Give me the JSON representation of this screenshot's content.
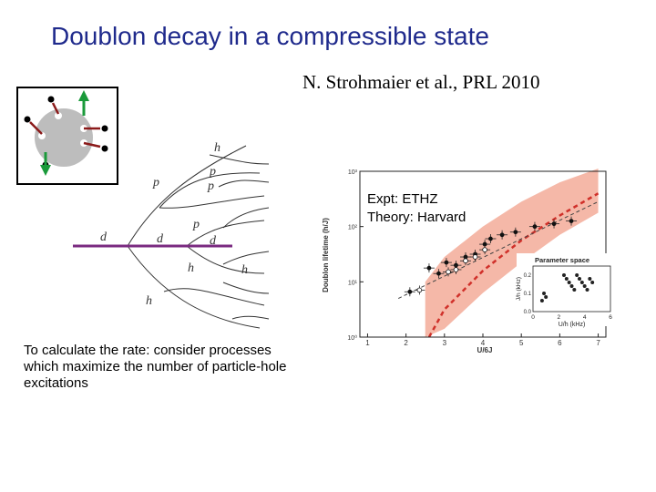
{
  "slide": {
    "title": "Doublon decay in a compressible state",
    "citation": "N. Strohmaier et al., PRL 2010",
    "caption": "To calculate the rate: consider processes which maximize the number of particle-hole excitations",
    "legend_text": [
      "Expt: ETHZ",
      "Theory: Harvard"
    ]
  },
  "diagram": {
    "labels": [
      "d",
      "d",
      "d",
      "p",
      "p",
      "p",
      "p",
      "h",
      "h",
      "h",
      "h"
    ]
  },
  "colors": {
    "title": "#1f2a8c",
    "band": "#f5b8a8",
    "theory_dashed": "#d0302a",
    "doublon_line": "#7a2a80",
    "arrow_red": "#8b1a1a",
    "arrow_green": "#1a9a3a",
    "dot_gray": "#bdbdbd"
  },
  "chart_data": {
    "type": "scatter",
    "xlabel": "U/6J",
    "ylabel": "Doublon lifetime (h/J)",
    "x_ticks": [
      "1",
      "2",
      "3",
      "4",
      "5",
      "6",
      "7"
    ],
    "y_ticks": [
      "10⁰",
      "10¹",
      "10²",
      "10³"
    ],
    "xlim": [
      0.8,
      7.2
    ],
    "y_log": true,
    "ylim_log10": [
      0,
      3
    ],
    "series": [
      {
        "kind": "experiment_filled",
        "x": [
          2.1,
          2.6,
          2.85,
          3.05,
          3.3,
          3.55,
          3.8,
          4.05,
          4.2,
          4.5,
          4.85,
          5.35,
          5.85,
          6.3
        ],
        "y_log10": [
          0.82,
          1.25,
          1.15,
          1.35,
          1.3,
          1.45,
          1.5,
          1.68,
          1.78,
          1.85,
          1.9,
          2.0,
          2.05,
          2.1
        ]
      },
      {
        "kind": "experiment_open",
        "x": [
          2.35,
          3.1,
          3.3,
          3.55,
          3.8,
          4.05
        ],
        "y_log10": [
          0.85,
          1.18,
          1.22,
          1.38,
          1.45,
          1.58
        ]
      }
    ],
    "inset": {
      "title": "Parameter space",
      "xlabel": "U/h (kHz)",
      "ylabel": "J/h (kHz)",
      "x_ticks": [
        "0",
        "2",
        "4",
        "6"
      ],
      "y_ticks": [
        "0.0",
        "0.1",
        "0.2"
      ],
      "xlim": [
        0,
        6
      ],
      "ylim": [
        0,
        0.25
      ],
      "points_x": [
        0.7,
        0.85,
        1.0,
        2.4,
        2.6,
        2.8,
        3.0,
        3.2,
        3.4,
        3.6,
        3.8,
        4.0,
        4.2,
        4.4,
        4.6
      ],
      "points_y": [
        0.06,
        0.1,
        0.08,
        0.2,
        0.18,
        0.16,
        0.14,
        0.12,
        0.2,
        0.18,
        0.16,
        0.14,
        0.12,
        0.18,
        0.16
      ]
    }
  }
}
